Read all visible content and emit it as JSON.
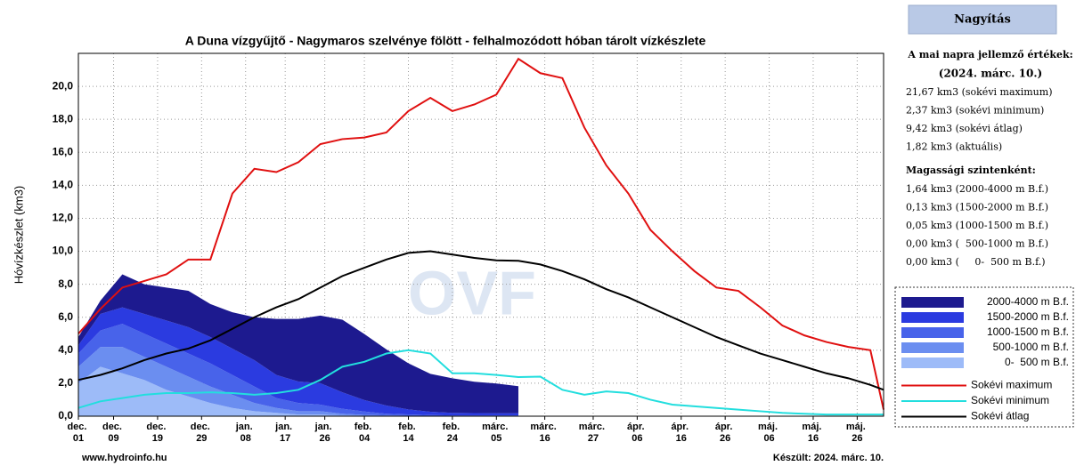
{
  "chart_data": {
    "type": "stacked-area-line",
    "title": "A Duna vízgyűjtő - Nagymaros szelvénye fölött - felhalmozódott hóban tárolt vízkészlete",
    "ylabel": "Hóvízkészlet (km3)",
    "watermark": "OVF",
    "grid": true,
    "legend": "right",
    "xlim": [
      0,
      183
    ],
    "ylim": [
      0,
      22
    ],
    "yticks": [
      {
        "value": 0,
        "label": "0,0"
      },
      {
        "value": 2,
        "label": "2,0"
      },
      {
        "value": 4,
        "label": "4,0"
      },
      {
        "value": 6,
        "label": "6,0"
      },
      {
        "value": 8,
        "label": "8,0"
      },
      {
        "value": 10,
        "label": "10,0"
      },
      {
        "value": 12,
        "label": "12,0"
      },
      {
        "value": 14,
        "label": "14,0"
      },
      {
        "value": 16,
        "label": "16,0"
      },
      {
        "value": 18,
        "label": "18,0"
      },
      {
        "value": 20,
        "label": "20,0"
      }
    ],
    "xticks": [
      {
        "value": 0,
        "label": "dec. 01"
      },
      {
        "value": 8,
        "label": "dec. 09"
      },
      {
        "value": 18,
        "label": "dec. 19"
      },
      {
        "value": 28,
        "label": "dec. 29"
      },
      {
        "value": 38,
        "label": "jan. 08"
      },
      {
        "value": 47,
        "label": "jan. 17"
      },
      {
        "value": 56,
        "label": "jan. 26"
      },
      {
        "value": 65,
        "label": "feb. 04"
      },
      {
        "value": 75,
        "label": "feb. 14"
      },
      {
        "value": 85,
        "label": "feb. 24"
      },
      {
        "value": 95,
        "label": "márc. 05"
      },
      {
        "value": 106,
        "label": "márc. 16"
      },
      {
        "value": 117,
        "label": "márc. 27"
      },
      {
        "value": 127,
        "label": "ápr. 06"
      },
      {
        "value": 137,
        "label": "ápr. 16"
      },
      {
        "value": 147,
        "label": "ápr. 26"
      },
      {
        "value": 157,
        "label": "máj. 06"
      },
      {
        "value": 167,
        "label": "máj. 16"
      },
      {
        "value": 177,
        "label": "máj. 26"
      }
    ],
    "x": [
      0,
      5,
      10,
      15,
      20,
      25,
      30,
      35,
      40,
      45,
      50,
      55,
      60,
      65,
      70,
      75,
      80,
      85,
      90,
      95,
      100,
      105,
      110,
      115,
      120,
      125,
      130,
      135,
      140,
      145,
      150,
      155,
      160,
      165,
      170,
      175,
      180,
      183
    ],
    "series": [
      {
        "name": "2000-4000 m B.f.",
        "kind": "area",
        "color": "#1d1a8f",
        "values": [
          0.5,
          0.8,
          2.0,
          1.8,
          2.0,
          2.2,
          2.0,
          2.2,
          2.6,
          3.4,
          3.8,
          4.1,
          4.4,
          4.0,
          3.4,
          2.8,
          2.3,
          2.1,
          1.9,
          1.8,
          1.64,
          null,
          null,
          null,
          null,
          null,
          null,
          null,
          null,
          null,
          null,
          null,
          null,
          null,
          null,
          null,
          null,
          null
        ]
      },
      {
        "name": "1500-2000 m B.f.",
        "kind": "area",
        "color": "#2b3be0",
        "values": [
          0.5,
          1.0,
          1.0,
          1.2,
          1.4,
          1.6,
          1.6,
          1.6,
          1.6,
          1.4,
          1.3,
          1.3,
          1.0,
          0.7,
          0.5,
          0.3,
          0.2,
          0.15,
          0.14,
          0.13,
          0.13,
          null,
          null,
          null,
          null,
          null,
          null,
          null,
          null,
          null,
          null,
          null,
          null,
          null,
          null,
          null,
          null,
          null
        ]
      },
      {
        "name": "1000-1500 m B.f.",
        "kind": "area",
        "color": "#4863ea",
        "values": [
          0.8,
          1.0,
          1.4,
          1.4,
          1.4,
          1.4,
          1.4,
          1.2,
          1.0,
          0.6,
          0.5,
          0.4,
          0.3,
          0.2,
          0.1,
          0.08,
          0.06,
          0.05,
          0.05,
          0.05,
          0.05,
          null,
          null,
          null,
          null,
          null,
          null,
          null,
          null,
          null,
          null,
          null,
          null,
          null,
          null,
          null,
          null,
          null
        ]
      },
      {
        "name": " 500-1000 m B.f.",
        "kind": "area",
        "color": "#6b8ef0",
        "values": [
          1.0,
          1.2,
          1.6,
          1.4,
          1.4,
          1.2,
          1.0,
          0.8,
          0.5,
          0.3,
          0.2,
          0.2,
          0.1,
          0.05,
          0.03,
          0.02,
          0.01,
          0,
          0,
          0,
          0,
          null,
          null,
          null,
          null,
          null,
          null,
          null,
          null,
          null,
          null,
          null,
          null,
          null,
          null,
          null,
          null,
          null
        ]
      },
      {
        "name": "0-  500 m B.f.",
        "kind": "area",
        "color": "#9dbbf8",
        "values": [
          2.0,
          3.0,
          2.6,
          2.2,
          1.6,
          1.2,
          0.8,
          0.5,
          0.3,
          0.2,
          0.1,
          0.1,
          0.05,
          0.03,
          0.02,
          0.01,
          0,
          0,
          0,
          0,
          0,
          null,
          null,
          null,
          null,
          null,
          null,
          null,
          null,
          null,
          null,
          null,
          null,
          null,
          null,
          null,
          null,
          null
        ]
      },
      {
        "name": "Sokévi maximum",
        "kind": "line",
        "color": "#e01010",
        "values": [
          5.0,
          6.5,
          7.8,
          8.2,
          8.6,
          9.5,
          9.5,
          13.5,
          15.0,
          14.8,
          15.4,
          16.5,
          16.8,
          16.9,
          17.2,
          18.5,
          19.3,
          18.5,
          18.9,
          19.5,
          21.67,
          20.8,
          20.5,
          17.5,
          15.2,
          13.5,
          11.3,
          10.0,
          8.8,
          7.8,
          7.6,
          6.6,
          5.5,
          4.9,
          4.5,
          4.2,
          4.0,
          0.4
        ]
      },
      {
        "name": "Sokévi minimum",
        "kind": "line",
        "color": "#22dede",
        "values": [
          0.5,
          0.9,
          1.1,
          1.3,
          1.4,
          1.4,
          1.45,
          1.4,
          1.3,
          1.4,
          1.6,
          2.2,
          3.0,
          3.3,
          3.8,
          4.0,
          3.8,
          2.6,
          2.6,
          2.5,
          2.37,
          2.4,
          1.6,
          1.3,
          1.5,
          1.4,
          1.0,
          0.7,
          0.6,
          0.5,
          0.4,
          0.3,
          0.2,
          0.15,
          0.1,
          0.1,
          0.1,
          0.1
        ]
      },
      {
        "name": "Sokévi átlag",
        "kind": "line",
        "color": "#000000",
        "values": [
          2.2,
          2.5,
          2.9,
          3.4,
          3.8,
          4.1,
          4.6,
          5.3,
          6.0,
          6.6,
          7.1,
          7.8,
          8.5,
          9.0,
          9.5,
          9.9,
          10.0,
          9.8,
          9.6,
          9.45,
          9.42,
          9.2,
          8.8,
          8.3,
          7.7,
          7.2,
          6.6,
          6.0,
          5.4,
          4.8,
          4.3,
          3.8,
          3.4,
          3.0,
          2.6,
          2.3,
          1.9,
          1.6
        ]
      }
    ],
    "footer_left": "www.hydroinfo.hu",
    "footer_right": "Készült: 2024. márc. 10."
  },
  "side_panel": {
    "button": "Nagyítás",
    "heading": "A mai napra jellemző értékek:",
    "date": "(2024. márc. 10.)",
    "today_values": [
      "21,67 km3 (sokévi maximum)",
      "2,37 km3 (sokévi minimum)",
      "9,42 km3 (sokévi átlag)",
      "1,82 km3 (aktuális)"
    ],
    "levels_heading": "Magassági szintenként:",
    "levels": [
      "1,64 km3 (2000-4000 m B.f.)",
      "0,13 km3 (1500-2000 m B.f.)",
      "0,05 km3 (1000-1500 m B.f.)",
      "0,00 km3 (  500-1000 m B.f.)",
      "0,00 km3 (     0-  500 m B.f.)"
    ]
  }
}
